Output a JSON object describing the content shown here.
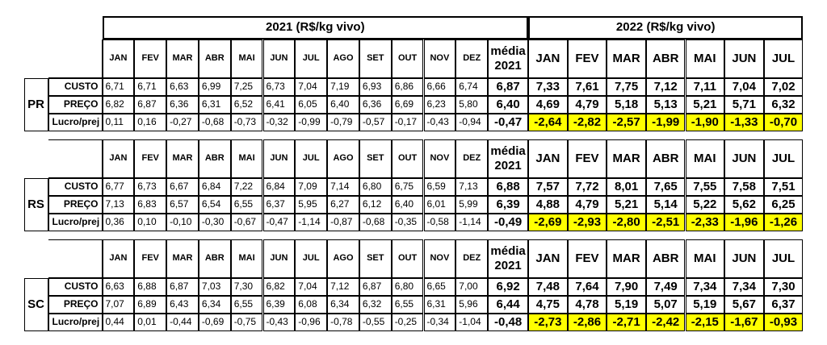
{
  "header": {
    "title_2021": "2021  (R$/kg vivo)",
    "title_2022": "2022 (R$/kg vivo)"
  },
  "blocks": [
    {
      "state": "PR",
      "columns": [
        "JAN",
        "FEV",
        "MAR",
        "ABR",
        "MAI",
        "JUN",
        "JUL",
        "AGO",
        "SET",
        "OUT",
        "NOV",
        "DEZ",
        "média 2021",
        "JAN",
        "FEV",
        "MAR",
        "ABR",
        "MAI",
        "JUN",
        "JUL"
      ],
      "rows": [
        {
          "label": "CUSTO",
          "values": [
            "6,71",
            "6,71",
            "6,63",
            "6,99",
            "7,25",
            "6,73",
            "7,04",
            "7,19",
            "6,93",
            "6,86",
            "6,66",
            "6,74",
            "6,87",
            "7,33",
            "7,61",
            "7,75",
            "7,12",
            "7,11",
            "7,04",
            "7,02"
          ]
        },
        {
          "label": "PREÇO",
          "values": [
            "6,82",
            "6,87",
            "6,36",
            "6,31",
            "6,52",
            "6,41",
            "6,05",
            "6,40",
            "6,36",
            "6,69",
            "6,23",
            "5,80",
            "6,40",
            "4,69",
            "4,79",
            "5,18",
            "5,13",
            "5,21",
            "5,71",
            "6,32"
          ]
        },
        {
          "label": "Lucro/prej",
          "values": [
            "0,11",
            "0,16",
            "-0,27",
            "-0,68",
            "-0,73",
            "-0,32",
            "-0,99",
            "-0,79",
            "-0,57",
            "-0,17",
            "-0,43",
            "-0,94",
            "-0,47",
            "-2,64",
            "-2,82",
            "-2,57",
            "-1,99",
            "-1,90",
            "-1,33",
            "-0,70"
          ]
        }
      ]
    },
    {
      "state": "RS",
      "columns": [
        "JAN",
        "FEV",
        "MAR",
        "ABR",
        "MAI",
        "JUN",
        "JUL",
        "AGO",
        "SET",
        "OUT",
        "NOV",
        "DEZ",
        "média 2021",
        "JAN",
        "FEV",
        "MAR",
        "ABR",
        "MAI",
        "JUN",
        "JUL"
      ],
      "rows": [
        {
          "label": "CUSTO",
          "values": [
            "6,77",
            "6,73",
            "6,67",
            "6,84",
            "7,22",
            "6,84",
            "7,09",
            "7,14",
            "6,80",
            "6,75",
            "6,59",
            "7,13",
            "6,88",
            "7,57",
            "7,72",
            "8,01",
            "7,65",
            "7,55",
            "7,58",
            "7,51"
          ]
        },
        {
          "label": "PREÇO",
          "values": [
            "7,13",
            "6,83",
            "6,57",
            "6,54",
            "6,55",
            "6,37",
            "5,95",
            "6,27",
            "6,12",
            "6,40",
            "6,01",
            "5,99",
            "6,39",
            "4,88",
            "4,79",
            "5,21",
            "5,14",
            "5,22",
            "5,62",
            "6,25"
          ]
        },
        {
          "label": "Lucro/prej",
          "values": [
            "0,36",
            "0,10",
            "-0,10",
            "-0,30",
            "-0,67",
            "-0,47",
            "-1,14",
            "-0,87",
            "-0,68",
            "-0,35",
            "-0,58",
            "-1,14",
            "-0,49",
            "-2,69",
            "-2,93",
            "-2,80",
            "-2,51",
            "-2,33",
            "-1,96",
            "-1,26"
          ]
        }
      ]
    },
    {
      "state": "SC",
      "columns": [
        "JAN",
        "FEV",
        "MAR",
        "ABR",
        "MAI",
        "JUN",
        "JUL",
        "AGO",
        "SET",
        "OUT",
        "NOV",
        "DEZ",
        "média 2021",
        "JAN",
        "FEV",
        "MAR",
        "ABR",
        "MAI",
        "JUN",
        "JUL"
      ],
      "rows": [
        {
          "label": "CUSTO",
          "values": [
            "6,63",
            "6,88",
            "6,87",
            "7,03",
            "7,30",
            "6,82",
            "7,04",
            "7,12",
            "6,87",
            "6,80",
            "6,65",
            "7,00",
            "6,92",
            "7,48",
            "7,64",
            "7,90",
            "7,49",
            "7,34",
            "7,34",
            "7,30"
          ]
        },
        {
          "label": "PREÇO",
          "values": [
            "7,07",
            "6,89",
            "6,43",
            "6,34",
            "6,55",
            "6,39",
            "6,08",
            "6,34",
            "6,32",
            "6,55",
            "6,31",
            "5,96",
            "6,44",
            "4,75",
            "4,78",
            "5,19",
            "5,07",
            "5,19",
            "5,67",
            "6,37"
          ]
        },
        {
          "label": "Lucro/prej",
          "values": [
            "0,44",
            "0,01",
            "-0,44",
            "-0,69",
            "-0,75",
            "-0,43",
            "-0,96",
            "-0,78",
            "-0,55",
            "-0,25",
            "-0,34",
            "-1,04",
            "-0,48",
            "-2,73",
            "-2,86",
            "-2,71",
            "-2,42",
            "-2,15",
            "-1,67",
            "-0,93"
          ]
        }
      ]
    }
  ]
}
